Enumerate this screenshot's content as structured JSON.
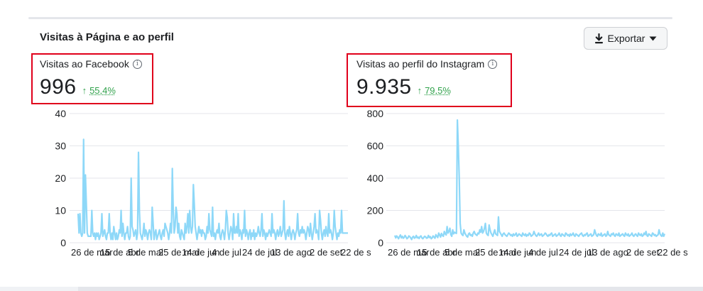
{
  "section": {
    "title": "Visitas à Página e ao perfil",
    "export_label": "Exportar"
  },
  "facebook": {
    "label": "Visitas ao Facebook",
    "value": "996",
    "change": "55,4%"
  },
  "instagram": {
    "label": "Visitas ao perfil do Instagram",
    "value": "9.935",
    "change": "79,5%"
  },
  "colors": {
    "line": "#8ed8f8",
    "grid": "#e4e6eb",
    "trend_up": "#31a24c",
    "highlight": "#e0001b"
  },
  "icons": [
    "download-icon",
    "caret-down-icon",
    "info-icon",
    "arrow-up-icon"
  ],
  "chart_data": [
    {
      "type": "line",
      "title": "",
      "xlabel": "",
      "ylabel": "",
      "ylim": [
        0,
        40
      ],
      "yticks": [
        0,
        10,
        20,
        30,
        40
      ],
      "xtick_labels": [
        "26 de mar",
        "15",
        "de abr",
        "5",
        "de mai",
        "25",
        "de mai",
        "14",
        "de jun",
        "4",
        "de jul",
        "24",
        "de jul",
        "13",
        "de ago",
        "2",
        "de set",
        "22",
        "de s"
      ],
      "grid": true,
      "series": [
        {
          "values": [
            9,
            3,
            9,
            3,
            2,
            3,
            32,
            3,
            21,
            12,
            3,
            2,
            2,
            2,
            2,
            10,
            3,
            2,
            3,
            1,
            3,
            2,
            3,
            1,
            2,
            3,
            9,
            2,
            3,
            4,
            2,
            1,
            3,
            3,
            9,
            3,
            1,
            3,
            1,
            5,
            3,
            1,
            3,
            1,
            2,
            4,
            3,
            10,
            2,
            6,
            3,
            1,
            3,
            3,
            5,
            2,
            1,
            2,
            20,
            5,
            4,
            2,
            3,
            4,
            1,
            3,
            28,
            10,
            3,
            2,
            1,
            3,
            6,
            2,
            4,
            3,
            1,
            3,
            4,
            3,
            1,
            11,
            6,
            1,
            3,
            4,
            1,
            2,
            3,
            4,
            2,
            1,
            3,
            4,
            2,
            6,
            5,
            4,
            3,
            1,
            3,
            6,
            3,
            23,
            10,
            3,
            5,
            11,
            9,
            3,
            6,
            2,
            1,
            4,
            3,
            2,
            1,
            6,
            3,
            5,
            9,
            3,
            10,
            5,
            3,
            5,
            18,
            12,
            5,
            3,
            1,
            3,
            5,
            3,
            4,
            2,
            4,
            3,
            3,
            1,
            2,
            5,
            3,
            9,
            4,
            3,
            2,
            11,
            2,
            3,
            1,
            3,
            4,
            3,
            6,
            2,
            1,
            3,
            4,
            3,
            1,
            4,
            10,
            8,
            3,
            1,
            3,
            5,
            4,
            1,
            9,
            3,
            3,
            5,
            3,
            9,
            2,
            4,
            3,
            1,
            4,
            3,
            10,
            2,
            4,
            3,
            1,
            3,
            4,
            1,
            3,
            2,
            4,
            1,
            3,
            2,
            3,
            5,
            3,
            2,
            4,
            9,
            2,
            4,
            3,
            1,
            3,
            2,
            3,
            4,
            3,
            2,
            9,
            3,
            4,
            3,
            1,
            3,
            4,
            2,
            3,
            5,
            2,
            3,
            4,
            13,
            3,
            1,
            3,
            4,
            2,
            5,
            3,
            1,
            3,
            4,
            3,
            1,
            3,
            4,
            9,
            3,
            2,
            4,
            3,
            5,
            3,
            4,
            3,
            1,
            3,
            5,
            4,
            2,
            6,
            3,
            1,
            3,
            5,
            9,
            3,
            4,
            3,
            1,
            10,
            7,
            3,
            1,
            3,
            4,
            2,
            5,
            3,
            2,
            9,
            3,
            4,
            3,
            1,
            3,
            10,
            5,
            3,
            1,
            3,
            2,
            4,
            3,
            10,
            3,
            3,
            3,
            3,
            3,
            3,
            3
          ]
        }
      ]
    },
    {
      "type": "line",
      "title": "",
      "xlabel": "",
      "ylabel": "",
      "ylim": [
        0,
        800
      ],
      "yticks": [
        0,
        200,
        400,
        600,
        800
      ],
      "xtick_labels": [
        "26 de mar",
        "15",
        "de abr",
        "5",
        "de mai",
        "25",
        "de mai",
        "14",
        "de jun",
        "4",
        "de jul",
        "24",
        "de jul",
        "13",
        "de ago",
        "2",
        "de set",
        "22",
        "de s"
      ],
      "grid": true,
      "series": [
        {
          "values": [
            45,
            30,
            42,
            35,
            25,
            38,
            48,
            30,
            40,
            28,
            33,
            45,
            36,
            25,
            30,
            42,
            38,
            30,
            20,
            35,
            40,
            28,
            32,
            45,
            30,
            35,
            26,
            38,
            42,
            30,
            25,
            33,
            40,
            36,
            28,
            30,
            45,
            32,
            38,
            25,
            30,
            42,
            35,
            28,
            50,
            40,
            32,
            60,
            48,
            35,
            58,
            45,
            40,
            70,
            55,
            48,
            100,
            60,
            70,
            90,
            50,
            40,
            80,
            55,
            65,
            60,
            58,
            760,
            600,
            400,
            120,
            60,
            50,
            45,
            80,
            60,
            50,
            40,
            35,
            55,
            60,
            45,
            50,
            40,
            60,
            70,
            55,
            50,
            45,
            60,
            55,
            80,
            65,
            100,
            60,
            70,
            90,
            120,
            60,
            50,
            45,
            110,
            80,
            60,
            50,
            40,
            60,
            80,
            55,
            50,
            45,
            160,
            70,
            60,
            50,
            40,
            55,
            60,
            50,
            45,
            40,
            50,
            60,
            55,
            45,
            50,
            40,
            55,
            45,
            50,
            60,
            40,
            45,
            55,
            50,
            45,
            40,
            60,
            50,
            45,
            55,
            40,
            50,
            45,
            60,
            55,
            40,
            45,
            50,
            70,
            55,
            45,
            40,
            50,
            60,
            45,
            50,
            55,
            40,
            45,
            50,
            60,
            55,
            45,
            40,
            50,
            45,
            55,
            60,
            40,
            45,
            50,
            55,
            40,
            45,
            50,
            60,
            45,
            40,
            55,
            50,
            45,
            40,
            60,
            55,
            45,
            50,
            40,
            55,
            45,
            50,
            60,
            45,
            40,
            55,
            50,
            45,
            40,
            50,
            55,
            60,
            45,
            40,
            50,
            45,
            55,
            60,
            40,
            45,
            50,
            55,
            40,
            45,
            50,
            80,
            60,
            45,
            40,
            55,
            50,
            45,
            60,
            40,
            45,
            50,
            55,
            40,
            45,
            70,
            50,
            45,
            40,
            55,
            50,
            60,
            45,
            40,
            55,
            50,
            45,
            60,
            40,
            45,
            50,
            55,
            45,
            40,
            60,
            50,
            45,
            55,
            40,
            45,
            50,
            60,
            45,
            40,
            50,
            55,
            45,
            40,
            60,
            50,
            45,
            55,
            40,
            45,
            60,
            50,
            70,
            45,
            40,
            55,
            50,
            45,
            40,
            60,
            55,
            45,
            50,
            40,
            45,
            50,
            80,
            55,
            45,
            40,
            60,
            40,
            55
          ]
        }
      ]
    }
  ]
}
